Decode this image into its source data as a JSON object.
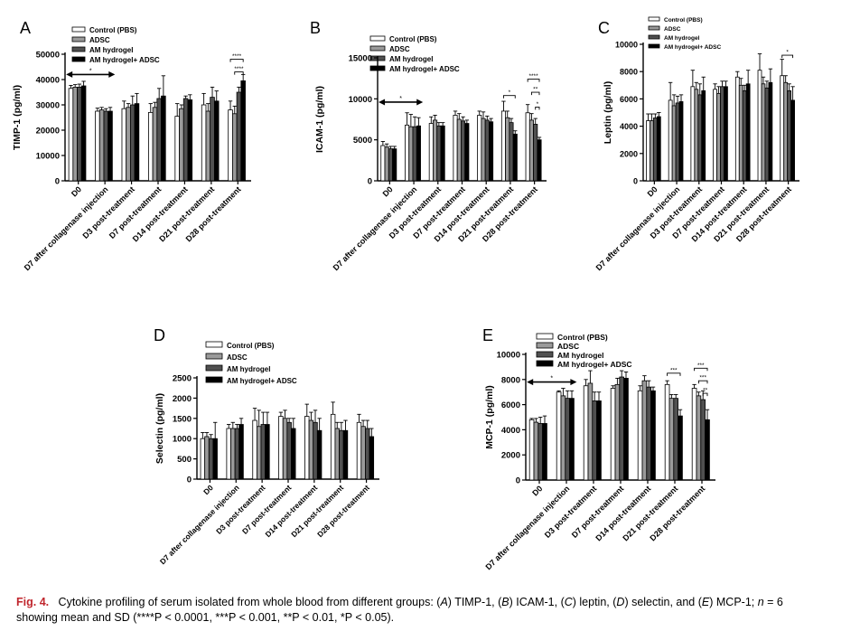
{
  "colors": {
    "control": "#ffffff",
    "adsc": "#9a9a9a",
    "hydrogel": "#505050",
    "hydrogel_adsc": "#000000",
    "caption_label": "#c0262d"
  },
  "caption": {
    "label": "Fig. 4.",
    "text_1": "Cytokine profiling of serum isolated from whole blood from different groups: (",
    "a": "A",
    "t_a": ") TIMP-1, (",
    "b": "B",
    "t_b": ") ICAM-1, (",
    "c": "C",
    "t_c": ") leptin, (",
    "d": "D",
    "t_d": ") selectin, and (",
    "e": "E",
    "t_e": ") MCP-1; ",
    "n": "n",
    "t_n": " = 6",
    "line2": "showing mean and SD (****P < 0.0001, ***P < 0.001, **P < 0.01, *P < 0.05)."
  },
  "chart_data": [
    {
      "type": "bar",
      "panel": "A",
      "ylabel": "TIMP-1 (pg/ml)",
      "ylim": [
        0,
        50000
      ],
      "yticks": [
        "0",
        "10000",
        "20000",
        "30000",
        "40000",
        "50000"
      ],
      "categories": [
        "D0",
        "D7 after collagenase injection",
        "D3 post-treatment",
        "D7 post-treatment",
        "D14 post-treatment",
        "D21 post-treatment",
        "D28 post-treatment"
      ],
      "legend": [
        "Control (PBS)",
        "ADSC",
        "AM hydrogel",
        "AM hydrogel+ ADSC"
      ],
      "series": [
        {
          "name": "Control (PBS)",
          "values": [
            36500,
            27500,
            28500,
            27000,
            25500,
            30000,
            28000
          ],
          "errors": [
            1200,
            1200,
            3000,
            3500,
            5000,
            4500,
            3500
          ]
        },
        {
          "name": "ADSC",
          "values": [
            37000,
            28000,
            29000,
            29000,
            28500,
            27500,
            26500
          ],
          "errors": [
            1000,
            1000,
            1500,
            2000,
            1500,
            3000,
            3000
          ]
        },
        {
          "name": "AM hydrogel",
          "values": [
            37000,
            27500,
            30000,
            32500,
            32500,
            33000,
            35000
          ],
          "errors": [
            1200,
            1000,
            3500,
            4000,
            1000,
            4000,
            2000
          ]
        },
        {
          "name": "AM hydrogel+ ADSC",
          "values": [
            37500,
            27500,
            30500,
            33500,
            32000,
            31500,
            39500
          ],
          "errors": [
            1800,
            1500,
            4000,
            8000,
            2000,
            4000,
            2500
          ]
        }
      ],
      "annotations": [
        {
          "type": "arrow",
          "from_cat": 0,
          "to_cat": 1,
          "y": 42000,
          "label": "*"
        },
        {
          "type": "bracket",
          "cat": 6,
          "s1": 0,
          "s2": 3,
          "y": 48000,
          "label": "****"
        },
        {
          "type": "bracket",
          "cat": 6,
          "s1": 1,
          "s2": 3,
          "y": 43000,
          "label": "****"
        }
      ]
    },
    {
      "type": "bar",
      "panel": "B",
      "ylabel": "ICAM-1 (pg/ml)",
      "ylim": [
        0,
        15000
      ],
      "yticks": [
        "0",
        "5000",
        "10000",
        "15000"
      ],
      "categories": [
        "D0",
        "D7 after collagenase injection",
        "D3 post-treatment",
        "D7 post-treatment",
        "D14 post-treatment",
        "D21 post-treatment",
        "D28 post-treatment"
      ],
      "legend": [
        "Control (PBS)",
        "ADSC",
        "AM hydrogel",
        "AM hydrogel+ ADSC"
      ],
      "series": [
        {
          "name": "Control (PBS)",
          "values": [
            4300,
            6800,
            7000,
            8000,
            8000,
            8500,
            8300
          ],
          "errors": [
            500,
            1500,
            800,
            500,
            500,
            1200,
            1000
          ]
        },
        {
          "name": "ADSC",
          "values": [
            4100,
            6600,
            7400,
            7500,
            7600,
            7700,
            7400
          ],
          "errors": [
            400,
            1500,
            600,
            700,
            800,
            800,
            800
          ]
        },
        {
          "name": "AM hydrogel",
          "values": [
            3900,
            6600,
            6700,
            7300,
            7400,
            7100,
            6900
          ],
          "errors": [
            300,
            1200,
            400,
            500,
            500,
            500,
            700
          ]
        },
        {
          "name": "AM hydrogel+ ADSC",
          "values": [
            3900,
            6700,
            6700,
            7000,
            7200,
            5700,
            5000
          ],
          "errors": [
            300,
            1000,
            400,
            400,
            400,
            400,
            300
          ]
        }
      ],
      "annotations": [
        {
          "type": "arrow",
          "from_cat": 0,
          "to_cat": 1,
          "y": 9600,
          "label": "*"
        },
        {
          "type": "bracket",
          "cat": 5,
          "s1": 0,
          "s2": 3,
          "y": 10400,
          "label": "*"
        },
        {
          "type": "bracket",
          "cat": 6,
          "s1": 0,
          "s2": 3,
          "y": 12400,
          "label": "****"
        },
        {
          "type": "bracket",
          "cat": 6,
          "s1": 1,
          "s2": 3,
          "y": 10800,
          "label": "**"
        },
        {
          "type": "bracket",
          "cat": 6,
          "s1": 2,
          "s2": 3,
          "y": 9000,
          "label": "*"
        }
      ]
    },
    {
      "type": "bar",
      "panel": "C",
      "ylabel": "Leptin (pg/ml)",
      "ylim": [
        0,
        10000
      ],
      "yticks": [
        "0",
        "2000",
        "4000",
        "6000",
        "8000",
        "10000"
      ],
      "categories": [
        "D0",
        "D7 after collagenase injection",
        "D3 post-treatment",
        "D7 post-treatment",
        "D14 post-treatment",
        "D21 post-treatment",
        "D28 post-treatment"
      ],
      "legend": [
        "Control (PBS)",
        "ADSC",
        "AM hydrogel",
        "AM hydrogel+ ADSC"
      ],
      "series": [
        {
          "name": "Control (PBS)",
          "values": [
            4400,
            5900,
            6900,
            6700,
            7600,
            8100,
            7700
          ],
          "errors": [
            500,
            1300,
            1200,
            400,
            400,
            1200,
            1200
          ]
        },
        {
          "name": "ADSC",
          "values": [
            4400,
            5500,
            6700,
            6400,
            7000,
            7100,
            7200
          ],
          "errors": [
            500,
            800,
            500,
            500,
            500,
            500,
            500
          ]
        },
        {
          "name": "AM hydrogel",
          "values": [
            4600,
            5700,
            6300,
            6900,
            6600,
            6800,
            6600
          ],
          "errors": [
            300,
            500,
            800,
            400,
            400,
            500,
            500
          ]
        },
        {
          "name": "AM hydrogel+ ADSC",
          "values": [
            4700,
            5800,
            6600,
            6900,
            7100,
            7200,
            5900
          ],
          "errors": [
            300,
            500,
            1000,
            400,
            1000,
            1000,
            1000
          ]
        }
      ],
      "annotations": [
        {
          "type": "bracket",
          "cat": 6,
          "s1": 0,
          "s2": 3,
          "y": 9200,
          "label": "*"
        }
      ]
    },
    {
      "type": "bar",
      "panel": "D",
      "ylabel": "Selectin (pg/ml)",
      "ylim": [
        0,
        2500
      ],
      "yticks": [
        "0",
        "500",
        "1000",
        "1500",
        "2000",
        "2500"
      ],
      "categories": [
        "D0",
        "D7 after collagenase injection",
        "D3 post-treatment",
        "D7 post-treatment",
        "D14 post-treatment",
        "D21 post-treatment",
        "D28 post-treatment"
      ],
      "legend": [
        "Control (PBS)",
        "ADSC",
        "AM hydrogel",
        "AM hydrogel+ ADSC"
      ],
      "series": [
        {
          "name": "Control (PBS)",
          "values": [
            1000,
            1250,
            1450,
            1550,
            1550,
            1600,
            1400
          ],
          "errors": [
            150,
            100,
            300,
            100,
            300,
            300,
            200
          ]
        },
        {
          "name": "ADSC",
          "values": [
            1050,
            1250,
            1300,
            1500,
            1450,
            1250,
            1300
          ],
          "errors": [
            100,
            150,
            400,
            200,
            200,
            150,
            150
          ]
        },
        {
          "name": "AM hydrogel",
          "values": [
            1000,
            1250,
            1350,
            1400,
            1400,
            1200,
            1250
          ],
          "errors": [
            100,
            100,
            300,
            100,
            300,
            200,
            200
          ]
        },
        {
          "name": "AM hydrogel+ ADSC",
          "values": [
            1000,
            1350,
            1350,
            1250,
            1200,
            1200,
            1050
          ],
          "errors": [
            400,
            150,
            300,
            250,
            300,
            250,
            200
          ]
        }
      ],
      "annotations": []
    },
    {
      "type": "bar",
      "panel": "E",
      "ylabel": "MCP-1 (pg/ml)",
      "ylim": [
        0,
        10000
      ],
      "yticks": [
        "0",
        "2000",
        "4000",
        "6000",
        "8000",
        "10000"
      ],
      "categories": [
        "D0",
        "D7 after collagenase injection",
        "D3 post-treatment",
        "D7 post-treatment",
        "D14 post-treatment",
        "D21 post-treatment",
        "D28 post-treatment"
      ],
      "legend": [
        "Control (PBS)",
        "ADSC",
        "AM hydrogel",
        "AM hydrogel+ ADSC"
      ],
      "series": [
        {
          "name": "Control (PBS)",
          "values": [
            4800,
            7000,
            7500,
            7300,
            7100,
            7600,
            7300
          ],
          "errors": [
            100,
            100,
            500,
            200,
            400,
            300,
            300
          ]
        },
        {
          "name": "ADSC",
          "values": [
            4600,
            6700,
            7700,
            7600,
            7900,
            6500,
            6700
          ],
          "errors": [
            300,
            600,
            1000,
            500,
            400,
            300,
            300
          ]
        },
        {
          "name": "AM hydrogel",
          "values": [
            4500,
            6500,
            6300,
            8200,
            7400,
            6500,
            6400
          ],
          "errors": [
            500,
            600,
            700,
            500,
            500,
            300,
            700
          ]
        },
        {
          "name": "AM hydrogel+ ADSC",
          "values": [
            4500,
            6500,
            6300,
            8100,
            7100,
            5100,
            4800
          ],
          "errors": [
            600,
            600,
            700,
            500,
            300,
            500,
            800
          ]
        }
      ],
      "annotations": [
        {
          "type": "arrow",
          "from_cat": 0,
          "to_cat": 1,
          "y": 7800,
          "label": "*"
        },
        {
          "type": "bracket",
          "cat": 5,
          "s1": 0,
          "s2": 3,
          "y": 8500,
          "label": "***"
        },
        {
          "type": "bracket",
          "cat": 6,
          "s1": 0,
          "s2": 3,
          "y": 8900,
          "label": "***"
        },
        {
          "type": "bracket",
          "cat": 6,
          "s1": 1,
          "s2": 3,
          "y": 7900,
          "label": "***"
        },
        {
          "type": "bracket",
          "cat": 6,
          "s1": 2,
          "s2": 3,
          "y": 6900,
          "label": "**"
        }
      ]
    }
  ]
}
